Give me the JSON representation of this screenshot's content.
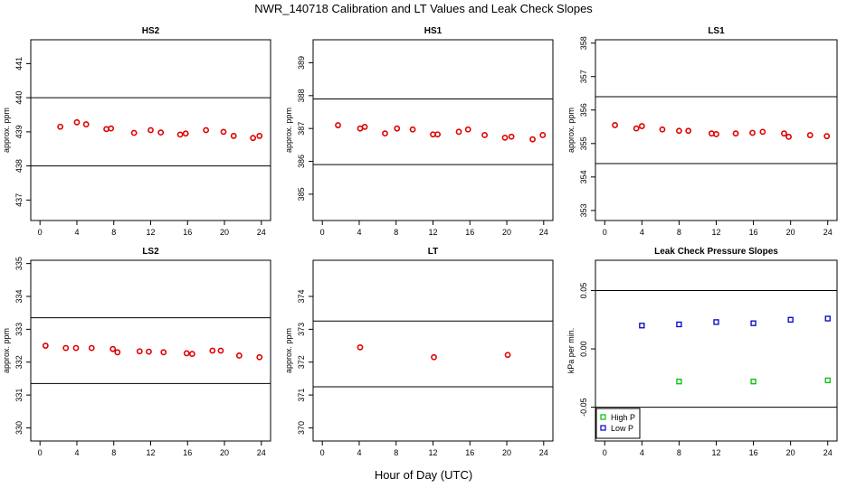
{
  "figure": {
    "title": "NWR_140718  Calibration and LT Values and Leak Check Slopes",
    "xlabel": "Hour of Day (UTC)"
  },
  "chart_data": [
    {
      "type": "scatter",
      "title": "HS2",
      "ylabel": "approx. ppm",
      "xlim": [
        -1,
        25
      ],
      "ylim": [
        436.4,
        441.7
      ],
      "xticks": [
        0,
        4,
        8,
        12,
        16,
        20,
        24
      ],
      "yticks": [
        437,
        438,
        439,
        440,
        441
      ],
      "hlines": [
        440.0,
        438.0
      ],
      "series": [
        {
          "color": "#e00000",
          "x": [
            2.2,
            4.0,
            5.0,
            7.2,
            7.7,
            10.2,
            12.0,
            13.1,
            15.2,
            15.8,
            18.0,
            19.9,
            21.0,
            23.1,
            23.8
          ],
          "y": [
            439.15,
            439.28,
            439.22,
            439.08,
            439.1,
            438.97,
            439.05,
            438.98,
            438.92,
            438.95,
            439.05,
            439.0,
            438.88,
            438.82,
            438.88
          ]
        }
      ]
    },
    {
      "type": "scatter",
      "title": "HS1",
      "ylabel": "approx. ppm",
      "xlim": [
        -1,
        25
      ],
      "ylim": [
        384.2,
        389.7
      ],
      "xticks": [
        0,
        4,
        8,
        12,
        16,
        20,
        24
      ],
      "yticks": [
        385,
        386,
        387,
        388,
        389
      ],
      "hlines": [
        387.9,
        385.9
      ],
      "series": [
        {
          "color": "#e00000",
          "x": [
            1.7,
            4.1,
            4.6,
            6.8,
            8.1,
            9.8,
            12.0,
            12.5,
            14.8,
            15.8,
            17.6,
            19.8,
            20.5,
            22.8,
            23.9
          ],
          "y": [
            387.1,
            387.0,
            387.05,
            386.85,
            387.0,
            386.97,
            386.82,
            386.82,
            386.9,
            386.97,
            386.8,
            386.72,
            386.75,
            386.67,
            386.8
          ]
        }
      ]
    },
    {
      "type": "scatter",
      "title": "LS1",
      "ylabel": "approx. ppm",
      "xlim": [
        -1,
        25
      ],
      "ylim": [
        352.7,
        358.1
      ],
      "xticks": [
        0,
        4,
        8,
        12,
        16,
        20,
        24
      ],
      "yticks": [
        353,
        354,
        355,
        356,
        357,
        358
      ],
      "hlines": [
        356.4,
        354.4
      ],
      "series": [
        {
          "color": "#e00000",
          "x": [
            1.1,
            3.4,
            4.0,
            6.2,
            8.0,
            9.0,
            11.5,
            12.0,
            14.1,
            15.9,
            17.0,
            19.3,
            19.8,
            22.1,
            23.9
          ],
          "y": [
            355.55,
            355.45,
            355.52,
            355.42,
            355.38,
            355.38,
            355.3,
            355.28,
            355.3,
            355.32,
            355.35,
            355.3,
            355.2,
            355.25,
            355.22
          ]
        }
      ]
    },
    {
      "type": "scatter",
      "title": "LS2",
      "ylabel": "approx. ppm",
      "xlim": [
        -1,
        25
      ],
      "ylim": [
        329.6,
        335.1
      ],
      "xticks": [
        0,
        4,
        8,
        12,
        16,
        20,
        24
      ],
      "yticks": [
        330,
        331,
        332,
        333,
        334,
        335
      ],
      "hlines": [
        333.35,
        331.35
      ],
      "series": [
        {
          "color": "#e00000",
          "x": [
            0.6,
            2.8,
            3.9,
            5.6,
            7.9,
            8.4,
            10.8,
            11.8,
            13.4,
            15.9,
            16.5,
            18.7,
            19.6,
            21.6,
            23.8
          ],
          "y": [
            332.5,
            332.43,
            332.43,
            332.43,
            332.4,
            332.3,
            332.33,
            332.32,
            332.3,
            332.27,
            332.25,
            332.35,
            332.35,
            332.2,
            332.15
          ]
        }
      ]
    },
    {
      "type": "scatter",
      "title": "LT",
      "ylabel": "approx. ppm",
      "xlim": [
        -1,
        25
      ],
      "ylim": [
        369.6,
        375.1
      ],
      "xticks": [
        0,
        4,
        8,
        12,
        16,
        20,
        24
      ],
      "yticks": [
        370,
        371,
        372,
        373,
        374
      ],
      "hlines": [
        373.25,
        371.25
      ],
      "series": [
        {
          "color": "#e00000",
          "x": [
            4.1,
            12.1,
            20.1
          ],
          "y": [
            372.45,
            372.15,
            372.22
          ]
        }
      ]
    },
    {
      "type": "scatter",
      "title": "Leak Check Pressure Slopes",
      "ylabel": "kPa per min.",
      "xlim": [
        -1,
        25
      ],
      "ylim": [
        -0.079,
        0.076
      ],
      "xticks": [
        0,
        4,
        8,
        12,
        16,
        20,
        24
      ],
      "yticks": [
        -0.05,
        0.0,
        0.05
      ],
      "ytick_labels": [
        "-0.05",
        "0.00",
        "0.05"
      ],
      "hlines": [
        0.05,
        -0.05
      ],
      "series": [
        {
          "name": "High P",
          "color": "#00c000",
          "x": [
            8,
            16,
            24
          ],
          "y": [
            -0.028,
            -0.028,
            -0.027
          ]
        },
        {
          "name": "Low P",
          "color": "#0000c8",
          "x": [
            4,
            8,
            12,
            16,
            20,
            24
          ],
          "y": [
            0.02,
            0.021,
            0.023,
            0.022,
            0.025,
            0.026
          ]
        }
      ],
      "legend": "bottom-left"
    }
  ]
}
